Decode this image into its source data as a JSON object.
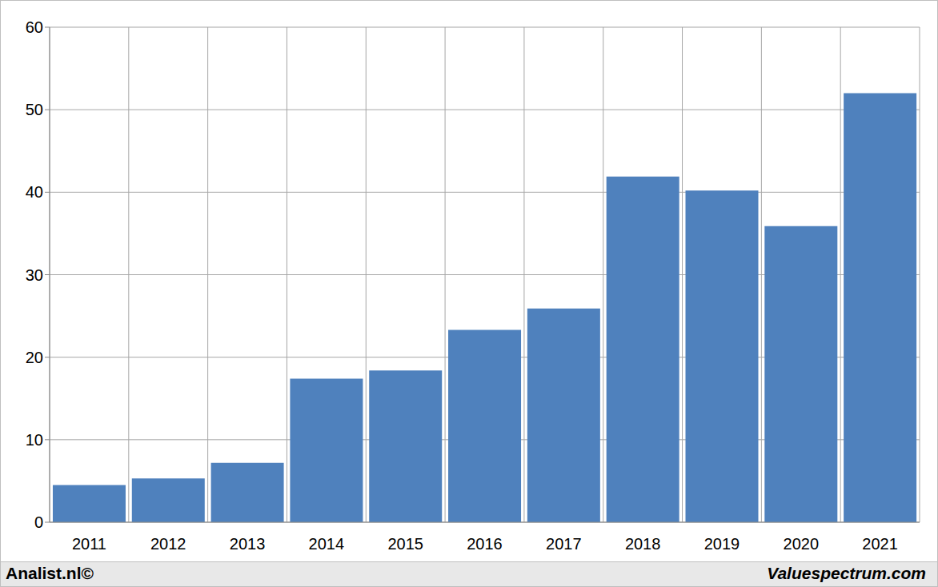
{
  "chart_data": {
    "type": "bar",
    "categories": [
      "2011",
      "2012",
      "2013",
      "2014",
      "2015",
      "2016",
      "2017",
      "2018",
      "2019",
      "2020",
      "2021"
    ],
    "values": [
      4.5,
      5.3,
      7.2,
      17.4,
      18.4,
      23.3,
      25.9,
      41.9,
      40.2,
      35.9,
      52.0
    ],
    "color": "#4f81bd",
    "ylim": [
      0,
      60
    ],
    "yticks": [
      0,
      10,
      20,
      30,
      40,
      50,
      60
    ],
    "grid": true,
    "annotations": [
      "Analist.nl©",
      "Valuespectrum.com"
    ]
  }
}
